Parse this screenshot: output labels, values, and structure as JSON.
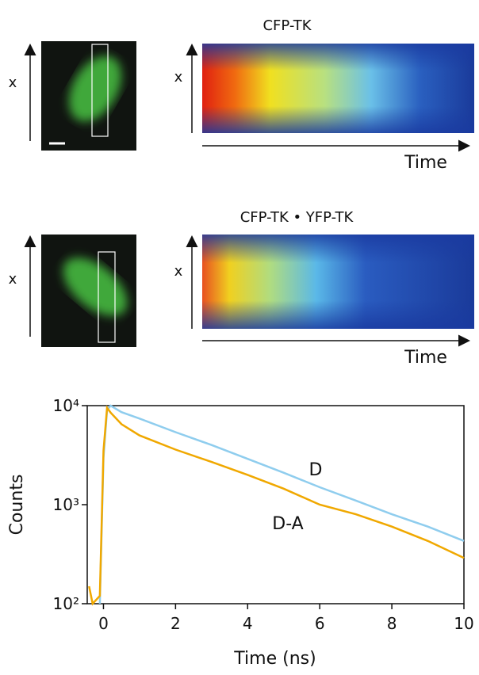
{
  "panels": [
    {
      "title": "CFP-TK",
      "image_axis": "x",
      "kymograph_axis": "x",
      "time_label": "Time"
    },
    {
      "title": "CFP-TK • YFP-TK",
      "image_axis": "x",
      "kymograph_axis": "x",
      "time_label": "Time"
    }
  ],
  "chart_data": {
    "type": "line",
    "x_label": "Time (ns)",
    "y_label": "Counts",
    "log_y": true,
    "x": [
      -0.4,
      -0.3,
      -0.1,
      0,
      0.1,
      0.2,
      0.5,
      1,
      2,
      3,
      4,
      5,
      6,
      7,
      8,
      9,
      10
    ],
    "series": [
      {
        "name": "D",
        "color": "#8fcdee",
        "values": [
          null,
          null,
          100,
          3000,
          9000,
          10000,
          8600,
          7400,
          5400,
          4000,
          2900,
          2100,
          1500,
          1100,
          800,
          600,
          430
        ]
      },
      {
        "name": "D-A",
        "color": "#f0a800",
        "values": [
          150,
          100,
          120,
          3500,
          9500,
          8500,
          6500,
          5000,
          3600,
          2700,
          2000,
          1450,
          1000,
          800,
          600,
          430,
          290
        ]
      }
    ],
    "xlim": [
      -0.45,
      10
    ],
    "xticks": [
      0,
      2,
      4,
      6,
      8,
      10
    ],
    "ylim": [
      100,
      10000
    ],
    "yticks": [
      {
        "value": 100,
        "label": "10²"
      },
      {
        "value": 1000,
        "label": "10³"
      },
      {
        "value": 10000,
        "label": "10⁴"
      }
    ]
  }
}
